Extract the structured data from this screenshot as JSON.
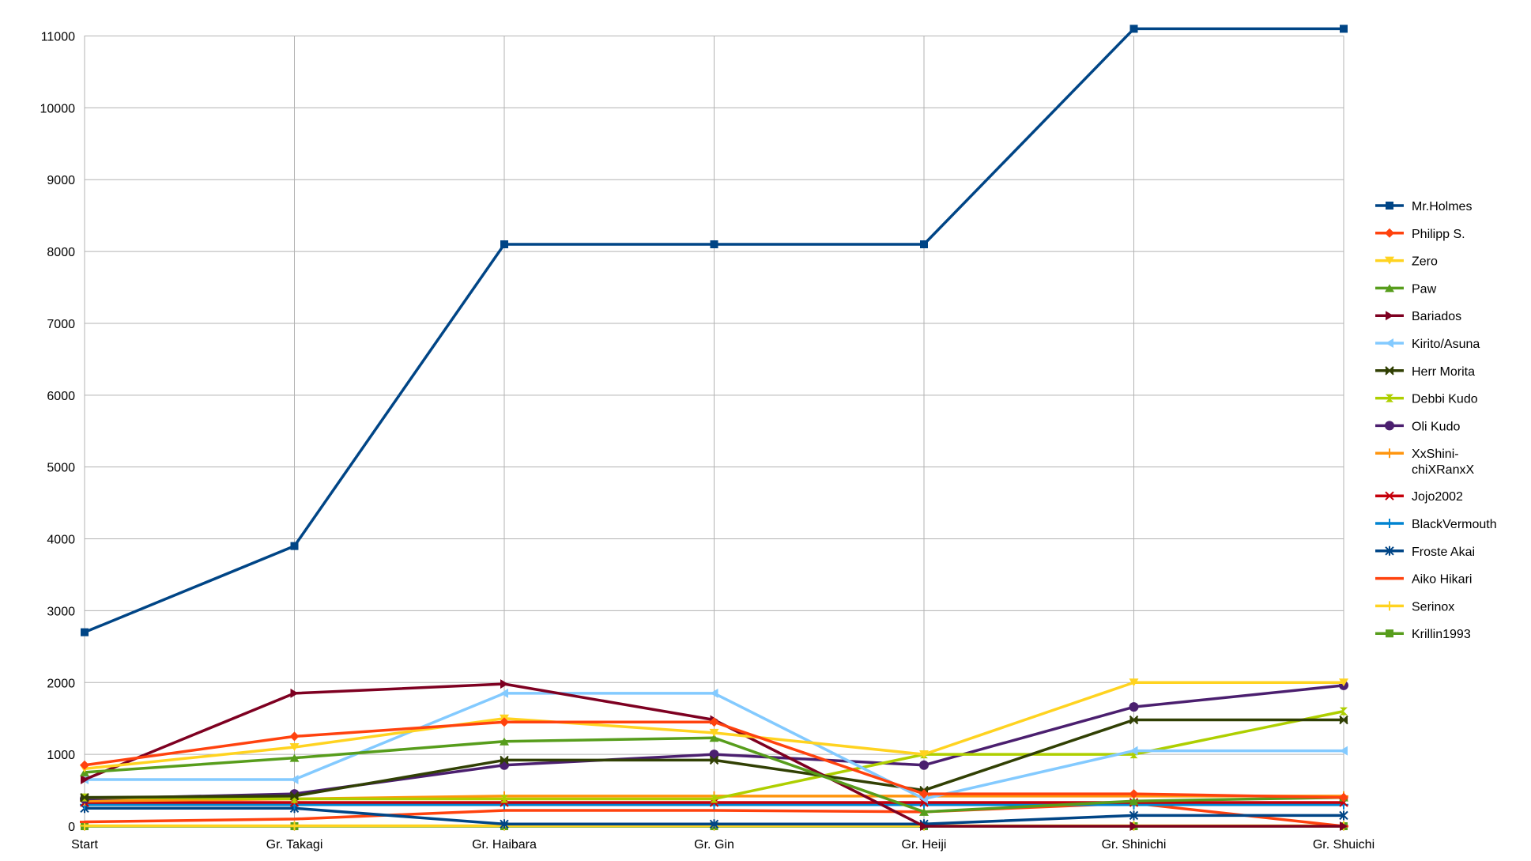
{
  "chart_data": {
    "type": "line",
    "title": "",
    "xlabel": "",
    "ylabel": "",
    "ylim": [
      0,
      11000
    ],
    "yticks": [
      0,
      1000,
      2000,
      3000,
      4000,
      5000,
      6000,
      7000,
      8000,
      9000,
      10000,
      11000
    ],
    "grid": true,
    "legend": "right",
    "categories": [
      "Start",
      "Gr. Takagi",
      "Gr. Haibara",
      "Gr. Gin",
      "Gr. Heiji",
      "Gr. Shinichi",
      "Gr. Shuichi"
    ],
    "series": [
      {
        "name": "Mr.Holmes",
        "color": "#004586",
        "marker": "square",
        "values": [
          2700,
          3900,
          8100,
          8100,
          8100,
          11100,
          11100
        ]
      },
      {
        "name": "Philipp S.",
        "color": "#ff420e",
        "marker": "diamond",
        "values": [
          850,
          1250,
          1450,
          1450,
          450,
          450,
          400
        ]
      },
      {
        "name": "Zero",
        "color": "#ffd320",
        "marker": "triangle-down",
        "values": [
          800,
          1100,
          1500,
          1300,
          1000,
          2000,
          2000
        ]
      },
      {
        "name": "Paw",
        "color": "#579d1c",
        "marker": "triangle-up",
        "values": [
          750,
          950,
          1180,
          1230,
          200,
          350,
          400
        ]
      },
      {
        "name": "Bariados",
        "color": "#7e0021",
        "marker": "triangle-right",
        "values": [
          650,
          1850,
          1980,
          1480,
          0,
          0,
          0
        ]
      },
      {
        "name": "Kirito/Asuna",
        "color": "#83caff",
        "marker": "triangle-left",
        "values": [
          650,
          650,
          1850,
          1850,
          380,
          1050,
          1050
        ]
      },
      {
        "name": "Herr Morita",
        "color": "#314004",
        "marker": "bowtie",
        "values": [
          400,
          420,
          920,
          920,
          500,
          1480,
          1480
        ]
      },
      {
        "name": "Debbi Kudo",
        "color": "#aecf00",
        "marker": "hourglass",
        "values": [
          400,
          380,
          380,
          380,
          1000,
          1000,
          1600
        ]
      },
      {
        "name": "Oli Kudo",
        "color": "#4b1f6f",
        "marker": "circle",
        "values": [
          380,
          450,
          850,
          1000,
          850,
          1660,
          1960
        ]
      },
      {
        "name": "XxShini-chiXRanxX",
        "color": "#ff950e",
        "marker": "plus",
        "values": [
          350,
          380,
          420,
          420,
          420,
          420,
          420
        ]
      },
      {
        "name": "Jojo2002",
        "color": "#c5000b",
        "marker": "x",
        "values": [
          330,
          330,
          330,
          330,
          330,
          330,
          330
        ]
      },
      {
        "name": "BlackVermouth",
        "color": "#0084d1",
        "marker": "plus",
        "values": [
          300,
          300,
          300,
          300,
          300,
          300,
          300
        ]
      },
      {
        "name": "Froste Akai",
        "color": "#004586",
        "marker": "asterisk",
        "values": [
          250,
          250,
          30,
          30,
          30,
          150,
          150
        ]
      },
      {
        "name": "Aiko Hikari",
        "color": "#ff420e",
        "marker": "line",
        "values": [
          60,
          100,
          220,
          220,
          200,
          320,
          0
        ]
      },
      {
        "name": "Serinox",
        "color": "#ffd320",
        "marker": "plus",
        "values": [
          5,
          5,
          5,
          5,
          5,
          5,
          5
        ]
      },
      {
        "name": "Krillin1993",
        "color": "#579d1c",
        "marker": "square",
        "values": [
          0,
          0,
          0,
          0,
          0,
          0,
          0
        ]
      }
    ]
  }
}
